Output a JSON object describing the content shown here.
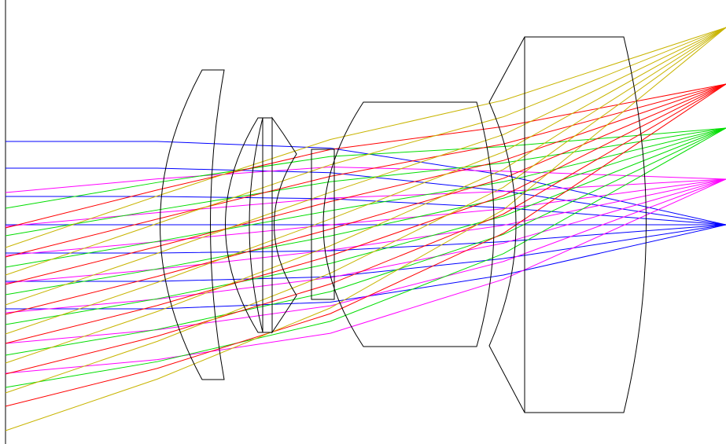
{
  "diagram": {
    "type": "optical-lens-raytrace",
    "description_shown": false,
    "ray_bundles": [
      {
        "field": "on-axis",
        "color": "#0000ff"
      },
      {
        "field": "field-2",
        "color": "#ff00ff"
      },
      {
        "field": "field-3",
        "color": "#00dd00"
      },
      {
        "field": "field-4",
        "color": "#ff0000"
      },
      {
        "field": "field-5",
        "color": "#c8b400"
      }
    ],
    "lens_elements": [
      {
        "name": "lens-element-1",
        "shape": "meniscus"
      },
      {
        "name": "lens-element-2",
        "shape": "biconvex"
      },
      {
        "name": "lens-element-3",
        "shape": "plano-convex"
      },
      {
        "name": "lens-element-4",
        "shape": "biconcave"
      },
      {
        "name": "lens-element-5",
        "shape": "plate"
      },
      {
        "name": "lens-element-6",
        "shape": "biconvex"
      },
      {
        "name": "lens-element-7",
        "shape": "meniscus"
      },
      {
        "name": "lens-element-8",
        "shape": "plano-convex"
      }
    ]
  }
}
